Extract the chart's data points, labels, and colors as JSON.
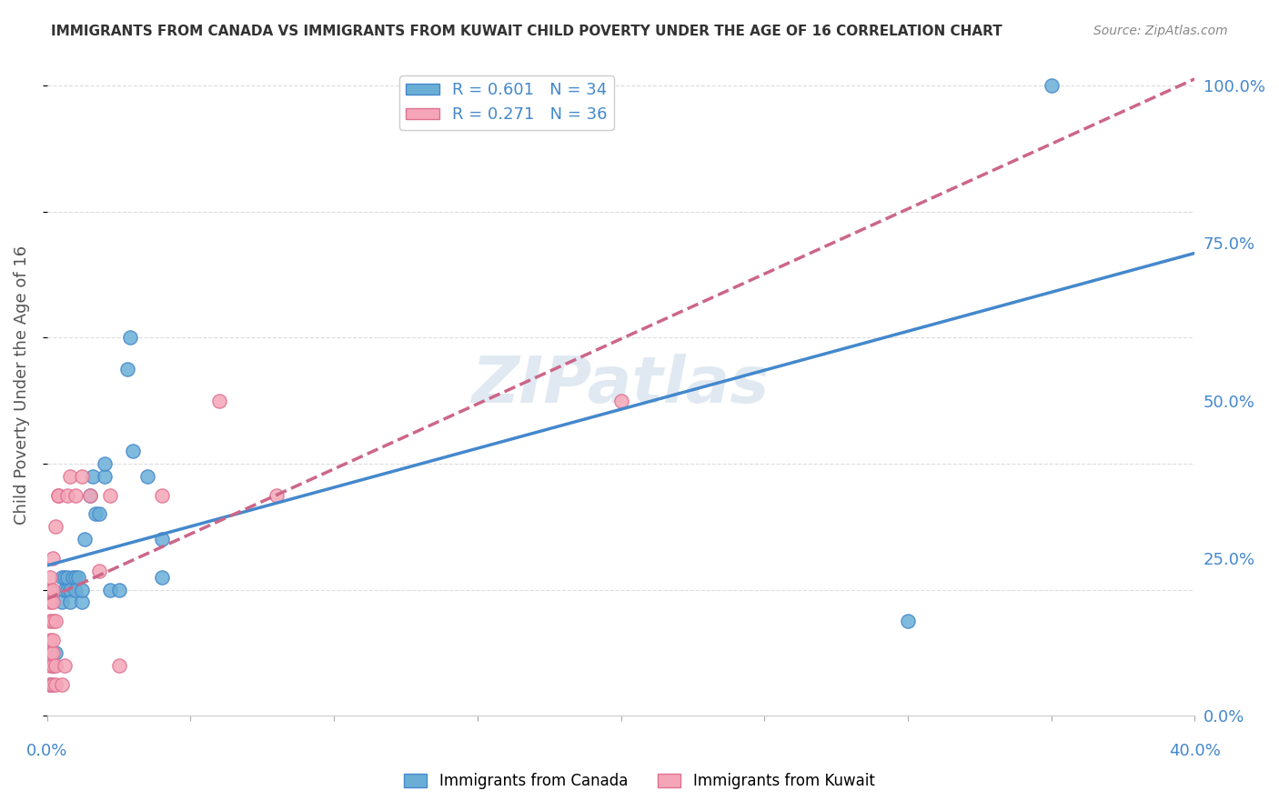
{
  "title": "IMMIGRANTS FROM CANADA VS IMMIGRANTS FROM KUWAIT CHILD POVERTY UNDER THE AGE OF 16 CORRELATION CHART",
  "source": "Source: ZipAtlas.com",
  "ylabel": "Child Poverty Under the Age of 16",
  "yticks": [
    "0.0%",
    "25.0%",
    "50.0%",
    "75.0%",
    "100.0%"
  ],
  "ytick_vals": [
    0,
    0.25,
    0.5,
    0.75,
    1.0
  ],
  "watermark": "ZIPatlas",
  "canada_color": "#6aaed6",
  "kuwait_color": "#f4a6b8",
  "canada_line_color": "#4488cc",
  "kuwait_line_color": "#cc6688",
  "canada_scatter": [
    [
      0.001,
      0.05
    ],
    [
      0.002,
      0.08
    ],
    [
      0.003,
      0.1
    ],
    [
      0.005,
      0.18
    ],
    [
      0.005,
      0.22
    ],
    [
      0.006,
      0.2
    ],
    [
      0.006,
      0.22
    ],
    [
      0.007,
      0.2
    ],
    [
      0.007,
      0.22
    ],
    [
      0.008,
      0.2
    ],
    [
      0.008,
      0.18
    ],
    [
      0.009,
      0.22
    ],
    [
      0.01,
      0.22
    ],
    [
      0.01,
      0.2
    ],
    [
      0.011,
      0.22
    ],
    [
      0.012,
      0.18
    ],
    [
      0.012,
      0.2
    ],
    [
      0.013,
      0.28
    ],
    [
      0.015,
      0.35
    ],
    [
      0.016,
      0.38
    ],
    [
      0.017,
      0.32
    ],
    [
      0.018,
      0.32
    ],
    [
      0.02,
      0.38
    ],
    [
      0.02,
      0.4
    ],
    [
      0.022,
      0.2
    ],
    [
      0.025,
      0.2
    ],
    [
      0.028,
      0.55
    ],
    [
      0.029,
      0.6
    ],
    [
      0.03,
      0.42
    ],
    [
      0.035,
      0.38
    ],
    [
      0.04,
      0.28
    ],
    [
      0.04,
      0.22
    ],
    [
      0.3,
      0.15
    ],
    [
      0.35,
      1.0
    ]
  ],
  "kuwait_scatter": [
    [
      0.001,
      0.05
    ],
    [
      0.001,
      0.08
    ],
    [
      0.001,
      0.1
    ],
    [
      0.001,
      0.12
    ],
    [
      0.001,
      0.15
    ],
    [
      0.001,
      0.18
    ],
    [
      0.001,
      0.2
    ],
    [
      0.001,
      0.22
    ],
    [
      0.002,
      0.05
    ],
    [
      0.002,
      0.08
    ],
    [
      0.002,
      0.1
    ],
    [
      0.002,
      0.12
    ],
    [
      0.002,
      0.15
    ],
    [
      0.002,
      0.18
    ],
    [
      0.002,
      0.2
    ],
    [
      0.002,
      0.25
    ],
    [
      0.003,
      0.05
    ],
    [
      0.003,
      0.08
    ],
    [
      0.003,
      0.15
    ],
    [
      0.003,
      0.3
    ],
    [
      0.004,
      0.35
    ],
    [
      0.004,
      0.35
    ],
    [
      0.005,
      0.05
    ],
    [
      0.006,
      0.08
    ],
    [
      0.007,
      0.35
    ],
    [
      0.008,
      0.38
    ],
    [
      0.01,
      0.35
    ],
    [
      0.012,
      0.38
    ],
    [
      0.015,
      0.35
    ],
    [
      0.018,
      0.23
    ],
    [
      0.022,
      0.35
    ],
    [
      0.025,
      0.08
    ],
    [
      0.04,
      0.35
    ],
    [
      0.06,
      0.5
    ],
    [
      0.08,
      0.35
    ],
    [
      0.2,
      0.5
    ]
  ],
  "xlim": [
    0,
    0.4
  ],
  "ylim": [
    0,
    1.05
  ],
  "canada_R": 0.601,
  "kuwait_R": 0.271,
  "canada_N": 34,
  "kuwait_N": 36
}
